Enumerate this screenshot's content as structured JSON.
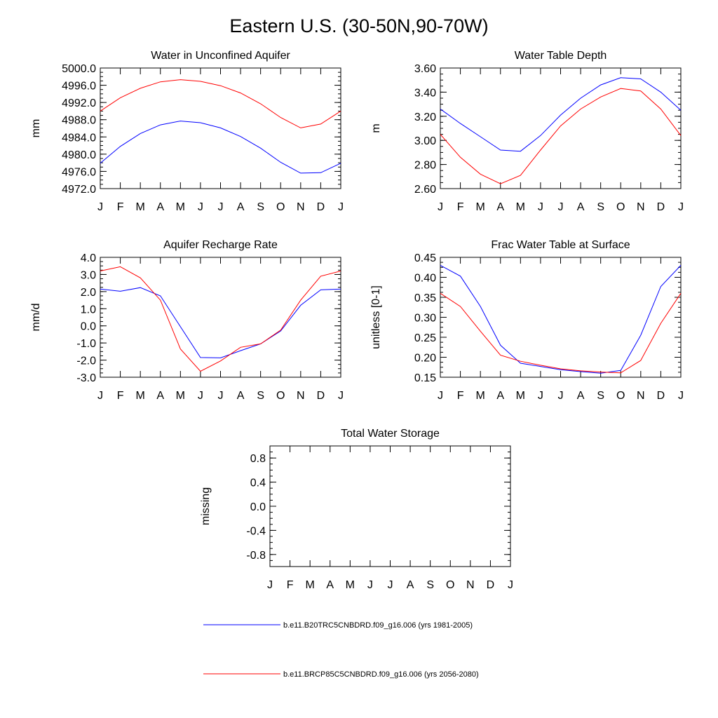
{
  "title": "Eastern U.S. (30-50N,90-70W)",
  "colors": {
    "series1": "#0000ff",
    "series2": "#ff0000",
    "axis": "#000000"
  },
  "legend": [
    {
      "label": "b.e11.B20TRC5CNBDRD.f09_g16.006 (yrs 1981-2005)",
      "color": "#0000ff"
    },
    {
      "label": "b.e11.BRCP85C5CNBDRD.f09_g16.006 (yrs 2056-2080)",
      "color": "#ff0000"
    }
  ],
  "chart_data": [
    {
      "type": "line",
      "title": "Water in Unconfined Aquifer",
      "ylabel": "mm",
      "xlabel": "",
      "categories": [
        "J",
        "F",
        "M",
        "A",
        "M",
        "J",
        "J",
        "A",
        "S",
        "O",
        "N",
        "D",
        "J"
      ],
      "ylim": [
        4972.0,
        5000.0
      ],
      "yticks": [
        "4972.0",
        "4976.0",
        "4980.0",
        "4984.0",
        "4988.0",
        "4992.0",
        "4996.0",
        "5000.0"
      ],
      "series": [
        {
          "name": "b.e11.B20TRC5CNBDRD.f09_g16.006 (yrs 1981-2005)",
          "values": [
            4977.9,
            4981.8,
            4984.8,
            4986.8,
            4987.7,
            4987.3,
            4986.1,
            4984.1,
            4981.4,
            4978.1,
            4975.6,
            4975.7,
            4977.9
          ]
        },
        {
          "name": "b.e11.BRCP85C5CNBDRD.f09_g16.006 (yrs 2056-2080)",
          "values": [
            4990.0,
            4993.1,
            4995.3,
            4996.8,
            4997.3,
            4996.9,
            4995.9,
            4994.2,
            4991.7,
            4988.5,
            4986.1,
            4987.0,
            4990.0
          ]
        }
      ]
    },
    {
      "type": "line",
      "title": "Water Table Depth",
      "ylabel": "m",
      "xlabel": "",
      "categories": [
        "J",
        "F",
        "M",
        "A",
        "M",
        "J",
        "J",
        "A",
        "S",
        "O",
        "N",
        "D",
        "J"
      ],
      "ylim": [
        2.6,
        3.6
      ],
      "yticks": [
        "2.60",
        "2.80",
        "3.00",
        "3.20",
        "3.40",
        "3.60"
      ],
      "series": [
        {
          "name": "b.e11.B20TRC5CNBDRD.f09_g16.006 (yrs 1981-2005)",
          "values": [
            3.26,
            3.14,
            3.03,
            2.92,
            2.91,
            3.04,
            3.21,
            3.35,
            3.46,
            3.52,
            3.51,
            3.4,
            3.25
          ]
        },
        {
          "name": "b.e11.BRCP85C5CNBDRD.f09_g16.006 (yrs 2056-2080)",
          "values": [
            3.05,
            2.86,
            2.72,
            2.64,
            2.71,
            2.92,
            3.12,
            3.26,
            3.36,
            3.43,
            3.41,
            3.26,
            3.04
          ]
        }
      ]
    },
    {
      "type": "line",
      "title": "Aquifer Recharge Rate",
      "ylabel": "mm/d",
      "xlabel": "",
      "categories": [
        "J",
        "F",
        "M",
        "A",
        "M",
        "J",
        "J",
        "A",
        "S",
        "O",
        "N",
        "D",
        "J"
      ],
      "ylim": [
        -3.0,
        4.0
      ],
      "yticks": [
        "-3.0",
        "-2.0",
        "-1.0",
        "0.0",
        "1.0",
        "2.0",
        "3.0",
        "4.0"
      ],
      "series": [
        {
          "name": "b.e11.B20TRC5CNBDRD.f09_g16.006 (yrs 1981-2005)",
          "values": [
            2.15,
            2.02,
            2.23,
            1.75,
            -0.05,
            -1.85,
            -1.87,
            -1.45,
            -1.05,
            -0.3,
            1.2,
            2.1,
            2.15
          ]
        },
        {
          "name": "b.e11.BRCP85C5CNBDRD.f09_g16.006 (yrs 2056-2080)",
          "values": [
            3.2,
            3.45,
            2.8,
            1.5,
            -1.35,
            -2.65,
            -2.05,
            -1.25,
            -1.05,
            -0.25,
            1.5,
            2.9,
            3.2
          ]
        }
      ]
    },
    {
      "type": "line",
      "title": "Frac Water Table at Surface",
      "ylabel": "unitless [0-1]",
      "xlabel": "",
      "categories": [
        "J",
        "F",
        "M",
        "A",
        "M",
        "J",
        "J",
        "A",
        "S",
        "O",
        "N",
        "D",
        "J"
      ],
      "ylim": [
        0.15,
        0.45
      ],
      "yticks": [
        "0.15",
        "0.20",
        "0.25",
        "0.30",
        "0.35",
        "0.40",
        "0.45"
      ],
      "series": [
        {
          "name": "b.e11.B20TRC5CNBDRD.f09_g16.006 (yrs 1981-2005)",
          "values": [
            0.43,
            0.403,
            0.327,
            0.23,
            0.185,
            0.177,
            0.169,
            0.164,
            0.16,
            0.167,
            0.255,
            0.377,
            0.43
          ]
        },
        {
          "name": "b.e11.BRCP85C5CNBDRD.f09_g16.006 (yrs 2056-2080)",
          "values": [
            0.36,
            0.327,
            0.265,
            0.205,
            0.19,
            0.18,
            0.171,
            0.166,
            0.163,
            0.161,
            0.192,
            0.285,
            0.36
          ]
        }
      ]
    },
    {
      "type": "line",
      "title": "Total Water Storage",
      "ylabel": "missing",
      "xlabel": "",
      "categories": [
        "J",
        "F",
        "M",
        "A",
        "M",
        "J",
        "J",
        "A",
        "S",
        "O",
        "N",
        "D",
        "J"
      ],
      "ylim": [
        -1.0,
        1.0
      ],
      "yticks": [
        "-0.8",
        "-0.4",
        "0.0",
        "0.4",
        "0.8"
      ],
      "series": []
    }
  ]
}
